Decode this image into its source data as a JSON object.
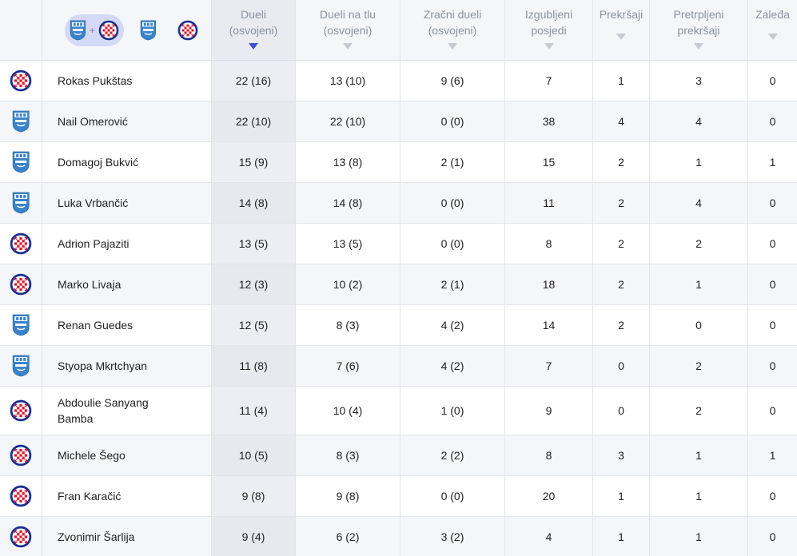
{
  "filters": {
    "combined_plus": "+",
    "options": [
      "osijek-hajduk",
      "osijek",
      "hajduk"
    ]
  },
  "columns": [
    {
      "key": "duels",
      "line1": "Dueli",
      "line2": "(osvojeni)",
      "sorted": true
    },
    {
      "key": "ground",
      "line1": "Dueli na tlu",
      "line2": "(osvojeni)",
      "sorted": false
    },
    {
      "key": "air",
      "line1": "Zračni dueli",
      "line2": "(osvojeni)",
      "sorted": false
    },
    {
      "key": "lost",
      "line1": "Izgubljeni",
      "line2": "posjedi",
      "sorted": false
    },
    {
      "key": "fouls",
      "line1": "Prekršaji",
      "line2": "",
      "sorted": false
    },
    {
      "key": "suffered",
      "line1": "Pretrpljeni",
      "line2": "prekršaji",
      "sorted": false
    },
    {
      "key": "offside",
      "line1": "Zaleđa",
      "line2": "",
      "sorted": false
    }
  ],
  "colors": {
    "accent": "#3a4fd8",
    "hajduk_red": "#d7182a",
    "hajduk_blue": "#1b2f8f",
    "osijek_blue": "#3b83c9"
  },
  "players": [
    {
      "team": "hajduk",
      "name": "Rokas Pukštas",
      "duels": "22 (16)",
      "ground": "13 (10)",
      "air": "9 (6)",
      "lost": "7",
      "fouls": "1",
      "suffered": "3",
      "offside": "0"
    },
    {
      "team": "osijek",
      "name": "Nail Omerović",
      "duels": "22 (10)",
      "ground": "22 (10)",
      "air": "0 (0)",
      "lost": "38",
      "fouls": "4",
      "suffered": "4",
      "offside": "0"
    },
    {
      "team": "osijek",
      "name": "Domagoj Bukvić",
      "duels": "15 (9)",
      "ground": "13 (8)",
      "air": "2 (1)",
      "lost": "15",
      "fouls": "2",
      "suffered": "1",
      "offside": "1"
    },
    {
      "team": "osijek",
      "name": "Luka Vrbančić",
      "duels": "14 (8)",
      "ground": "14 (8)",
      "air": "0 (0)",
      "lost": "11",
      "fouls": "2",
      "suffered": "4",
      "offside": "0"
    },
    {
      "team": "hajduk",
      "name": "Adrion Pajaziti",
      "duels": "13 (5)",
      "ground": "13 (5)",
      "air": "0 (0)",
      "lost": "8",
      "fouls": "2",
      "suffered": "2",
      "offside": "0"
    },
    {
      "team": "hajduk",
      "name": "Marko Livaja",
      "duels": "12 (3)",
      "ground": "10 (2)",
      "air": "2 (1)",
      "lost": "18",
      "fouls": "2",
      "suffered": "1",
      "offside": "0"
    },
    {
      "team": "osijek",
      "name": "Renan Guedes",
      "duels": "12 (5)",
      "ground": "8 (3)",
      "air": "4 (2)",
      "lost": "14",
      "fouls": "2",
      "suffered": "0",
      "offside": "0"
    },
    {
      "team": "osijek",
      "name": "Styopa Mkrtchyan",
      "duels": "11 (8)",
      "ground": "7 (6)",
      "air": "4 (2)",
      "lost": "7",
      "fouls": "0",
      "suffered": "2",
      "offside": "0"
    },
    {
      "team": "hajduk",
      "name": "Abdoulie Sanyang Bamba",
      "duels": "11 (4)",
      "ground": "10 (4)",
      "air": "1 (0)",
      "lost": "9",
      "fouls": "0",
      "suffered": "2",
      "offside": "0"
    },
    {
      "team": "hajduk",
      "name": "Michele Šego",
      "duels": "10 (5)",
      "ground": "8 (3)",
      "air": "2 (2)",
      "lost": "8",
      "fouls": "3",
      "suffered": "1",
      "offside": "1"
    },
    {
      "team": "hajduk",
      "name": "Fran Karačić",
      "duels": "9 (8)",
      "ground": "9 (8)",
      "air": "0 (0)",
      "lost": "20",
      "fouls": "1",
      "suffered": "1",
      "offside": "0"
    },
    {
      "team": "hajduk",
      "name": "Zvonimir Šarlija",
      "duels": "9 (4)",
      "ground": "6 (2)",
      "air": "3 (2)",
      "lost": "4",
      "fouls": "1",
      "suffered": "1",
      "offside": "0"
    }
  ]
}
